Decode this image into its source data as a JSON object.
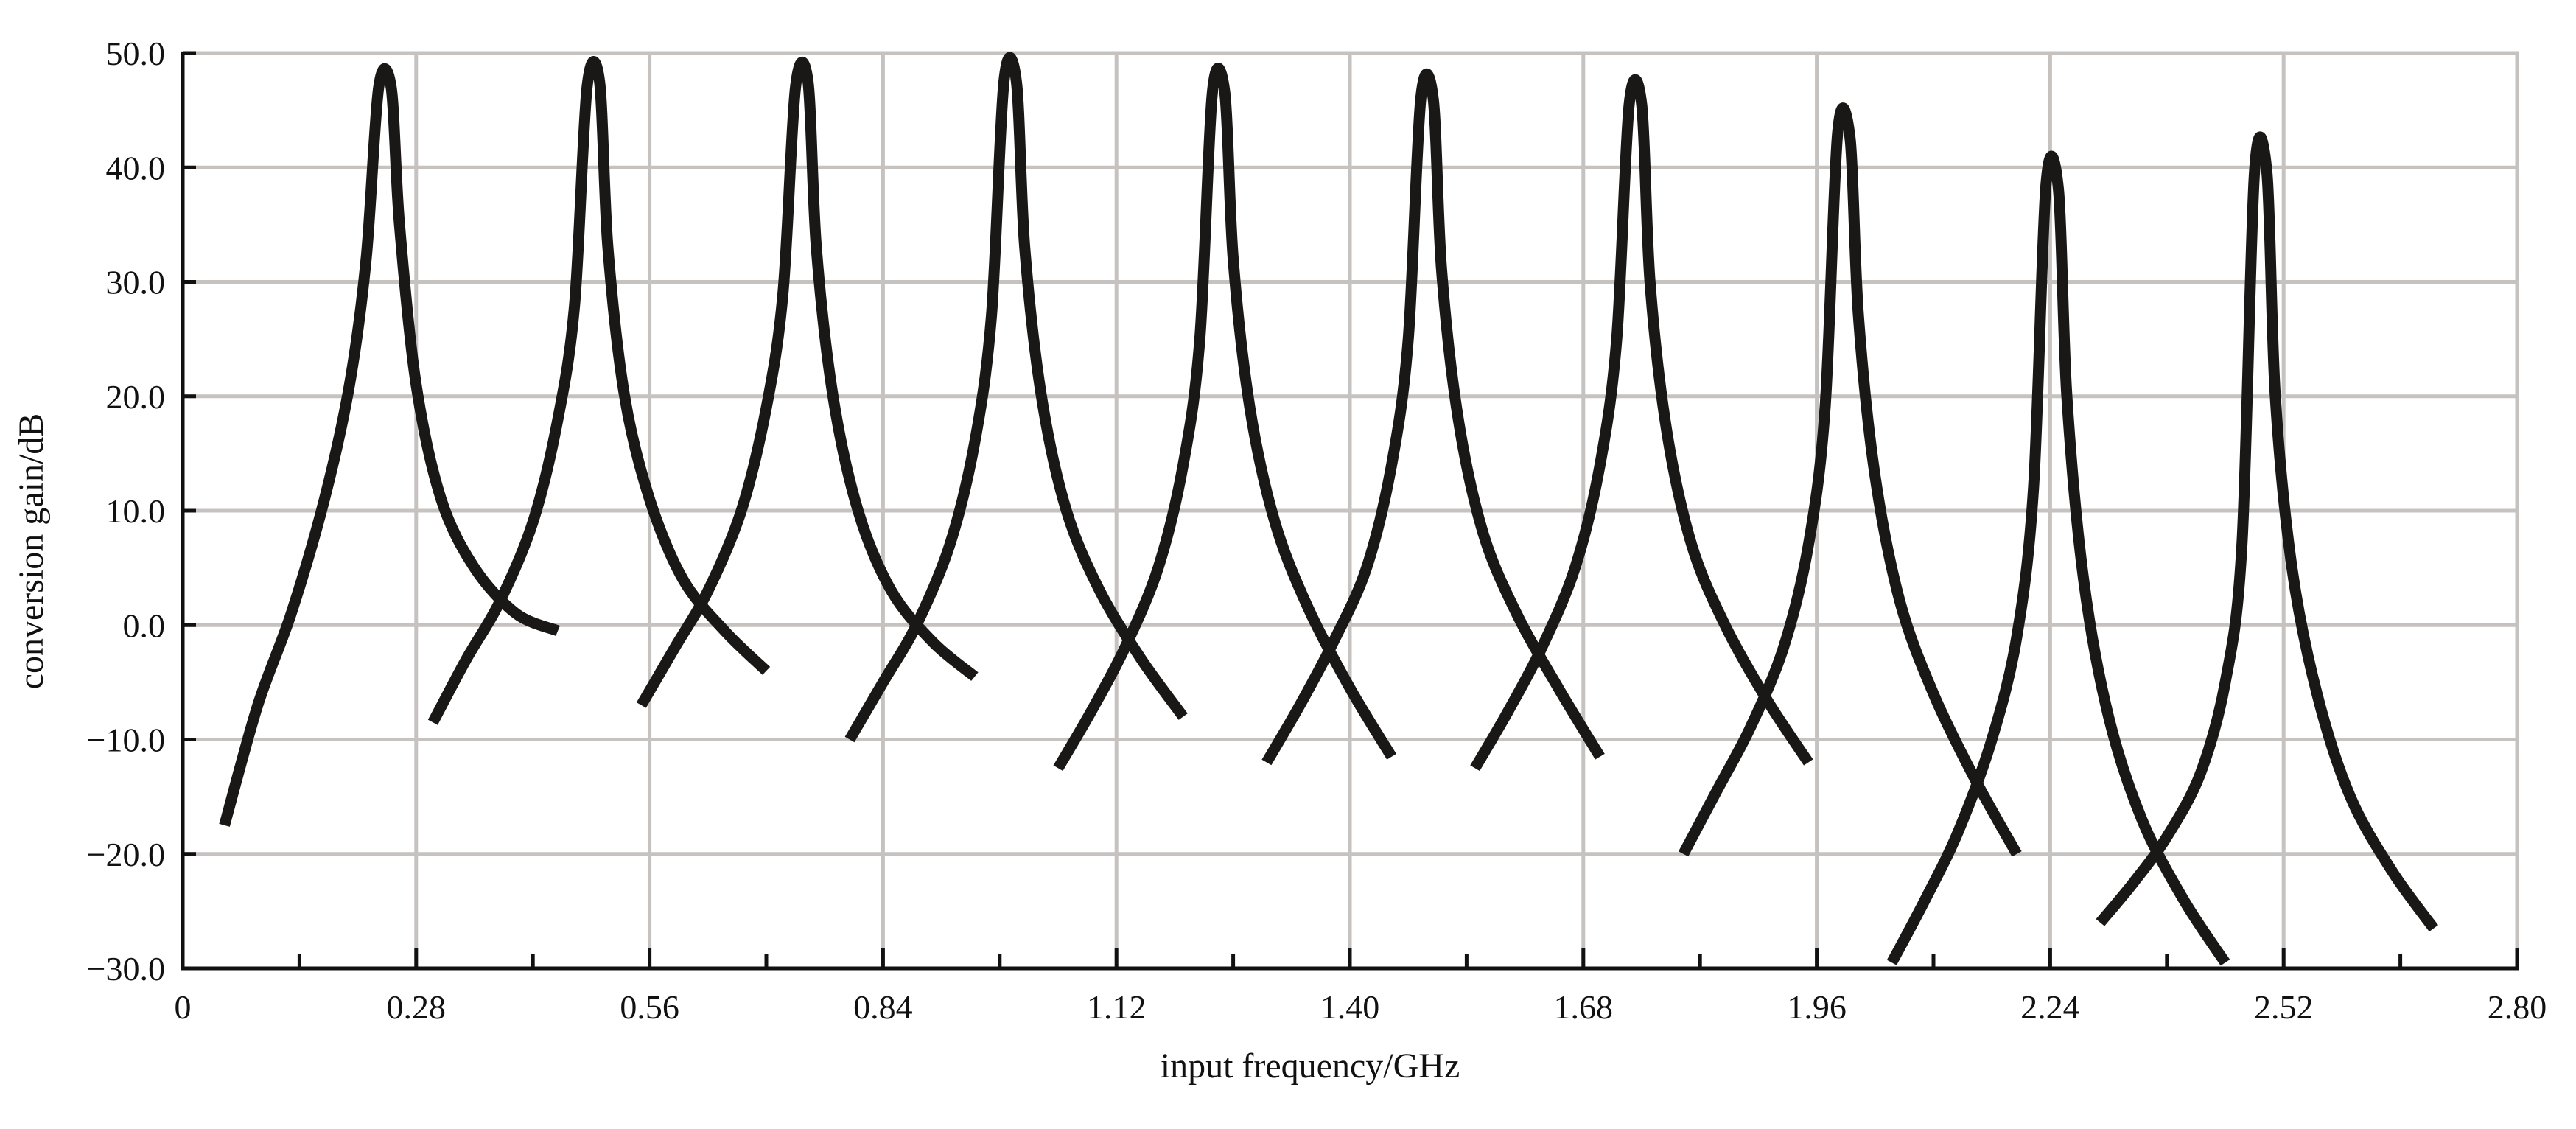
{
  "chart_data": {
    "type": "line",
    "title": "",
    "xlabel": "input frequency/GHz",
    "ylabel": "conversion gain/dB",
    "xlim": [
      0,
      2.8
    ],
    "ylim": [
      -30,
      50
    ],
    "x_ticks": [
      0,
      0.28,
      0.56,
      0.84,
      1.12,
      1.4,
      1.68,
      1.96,
      2.24,
      2.52,
      2.8
    ],
    "x_tick_labels": [
      "0",
      "0.28",
      "0.56",
      "0.84",
      "1.12",
      "1.40",
      "1.68",
      "1.96",
      "2.24",
      "2.52",
      "2.80"
    ],
    "y_ticks": [
      50,
      40,
      30,
      20,
      10,
      0,
      -10,
      -20,
      -30
    ],
    "y_tick_labels": [
      "50.0",
      "40.0",
      "30.0",
      "20.0",
      "10.0",
      "0.0",
      "−10.0",
      "−20.0",
      "−30.0"
    ],
    "grid": true,
    "legend": "none",
    "line_color": "#1a1817",
    "series": [
      {
        "x": [
          0.05,
          0.09,
          0.13,
          0.17,
          0.2,
          0.22,
          0.235,
          0.25,
          0.26,
          0.28,
          0.31,
          0.35,
          0.4,
          0.45
        ],
        "y": [
          -17.5,
          -7,
          1,
          11,
          21,
          32,
          47,
          47,
          35,
          21,
          11,
          5,
          1,
          -0.5
        ]
      },
      {
        "x": [
          0.3,
          0.34,
          0.38,
          0.42,
          0.45,
          0.47,
          0.485,
          0.5,
          0.51,
          0.53,
          0.56,
          0.6,
          0.65,
          0.7
        ],
        "y": [
          -8.5,
          -3,
          2,
          9,
          18,
          28,
          47,
          47.5,
          33,
          20,
          11,
          4,
          -0.5,
          -4
        ]
      },
      {
        "x": [
          0.55,
          0.59,
          0.63,
          0.67,
          0.7,
          0.72,
          0.735,
          0.75,
          0.76,
          0.78,
          0.81,
          0.85,
          0.9,
          0.95
        ],
        "y": [
          -7,
          -2,
          3,
          10,
          19,
          29,
          47,
          47.5,
          33,
          20,
          10,
          3,
          -1.5,
          -4.5
        ]
      },
      {
        "x": [
          0.8,
          0.84,
          0.88,
          0.92,
          0.95,
          0.97,
          0.985,
          1.0,
          1.01,
          1.03,
          1.06,
          1.1,
          1.15,
          1.2
        ],
        "y": [
          -10,
          -5,
          0,
          7,
          16,
          27,
          47.5,
          47.5,
          33,
          20,
          10,
          3,
          -3,
          -8
        ]
      },
      {
        "x": [
          1.05,
          1.09,
          1.13,
          1.17,
          1.2,
          1.22,
          1.235,
          1.25,
          1.26,
          1.28,
          1.31,
          1.35,
          1.4,
          1.45
        ],
        "y": [
          -12.5,
          -7.5,
          -2,
          5,
          14,
          25,
          46.5,
          46.5,
          32,
          19,
          9,
          1.5,
          -5.5,
          -11.5
        ]
      },
      {
        "x": [
          1.3,
          1.34,
          1.38,
          1.42,
          1.45,
          1.47,
          1.485,
          1.5,
          1.51,
          1.53,
          1.56,
          1.6,
          1.65,
          1.7
        ],
        "y": [
          -12,
          -7,
          -1.5,
          5,
          14,
          25,
          46,
          46,
          31,
          18,
          8,
          1,
          -5.5,
          -11.5
        ]
      },
      {
        "x": [
          1.55,
          1.59,
          1.63,
          1.67,
          1.7,
          1.72,
          1.735,
          1.75,
          1.76,
          1.78,
          1.81,
          1.85,
          1.9,
          1.95
        ],
        "y": [
          -12.5,
          -7.5,
          -2,
          5,
          14,
          25,
          45.5,
          45.5,
          30,
          17,
          7,
          0,
          -6.5,
          -12
        ]
      },
      {
        "x": [
          1.8,
          1.84,
          1.88,
          1.92,
          1.95,
          1.97,
          1.985,
          2.0,
          2.01,
          2.03,
          2.06,
          2.1,
          2.15,
          2.2
        ],
        "y": [
          -20,
          -14.5,
          -9,
          -2,
          7,
          19,
          43,
          42.5,
          27,
          13,
          2,
          -6,
          -13.5,
          -20
        ]
      },
      {
        "x": [
          2.05,
          2.09,
          2.13,
          2.17,
          2.2,
          2.22,
          2.235,
          2.25,
          2.26,
          2.28,
          2.31,
          2.35,
          2.4,
          2.45
        ],
        "y": [
          -29.5,
          -24,
          -18,
          -10,
          -1,
          12,
          38.5,
          38,
          20,
          4,
          -8,
          -17,
          -24,
          -29.5
        ]
      },
      {
        "x": [
          2.3,
          2.34,
          2.38,
          2.42,
          2.45,
          2.47,
          2.485,
          2.5,
          2.51,
          2.53,
          2.56,
          2.6,
          2.65,
          2.7
        ],
        "y": [
          -26,
          -22.5,
          -18.5,
          -13,
          -5,
          7,
          39.5,
          39.5,
          20,
          5,
          -6,
          -15,
          -21.5,
          -26.5
        ]
      }
    ]
  }
}
